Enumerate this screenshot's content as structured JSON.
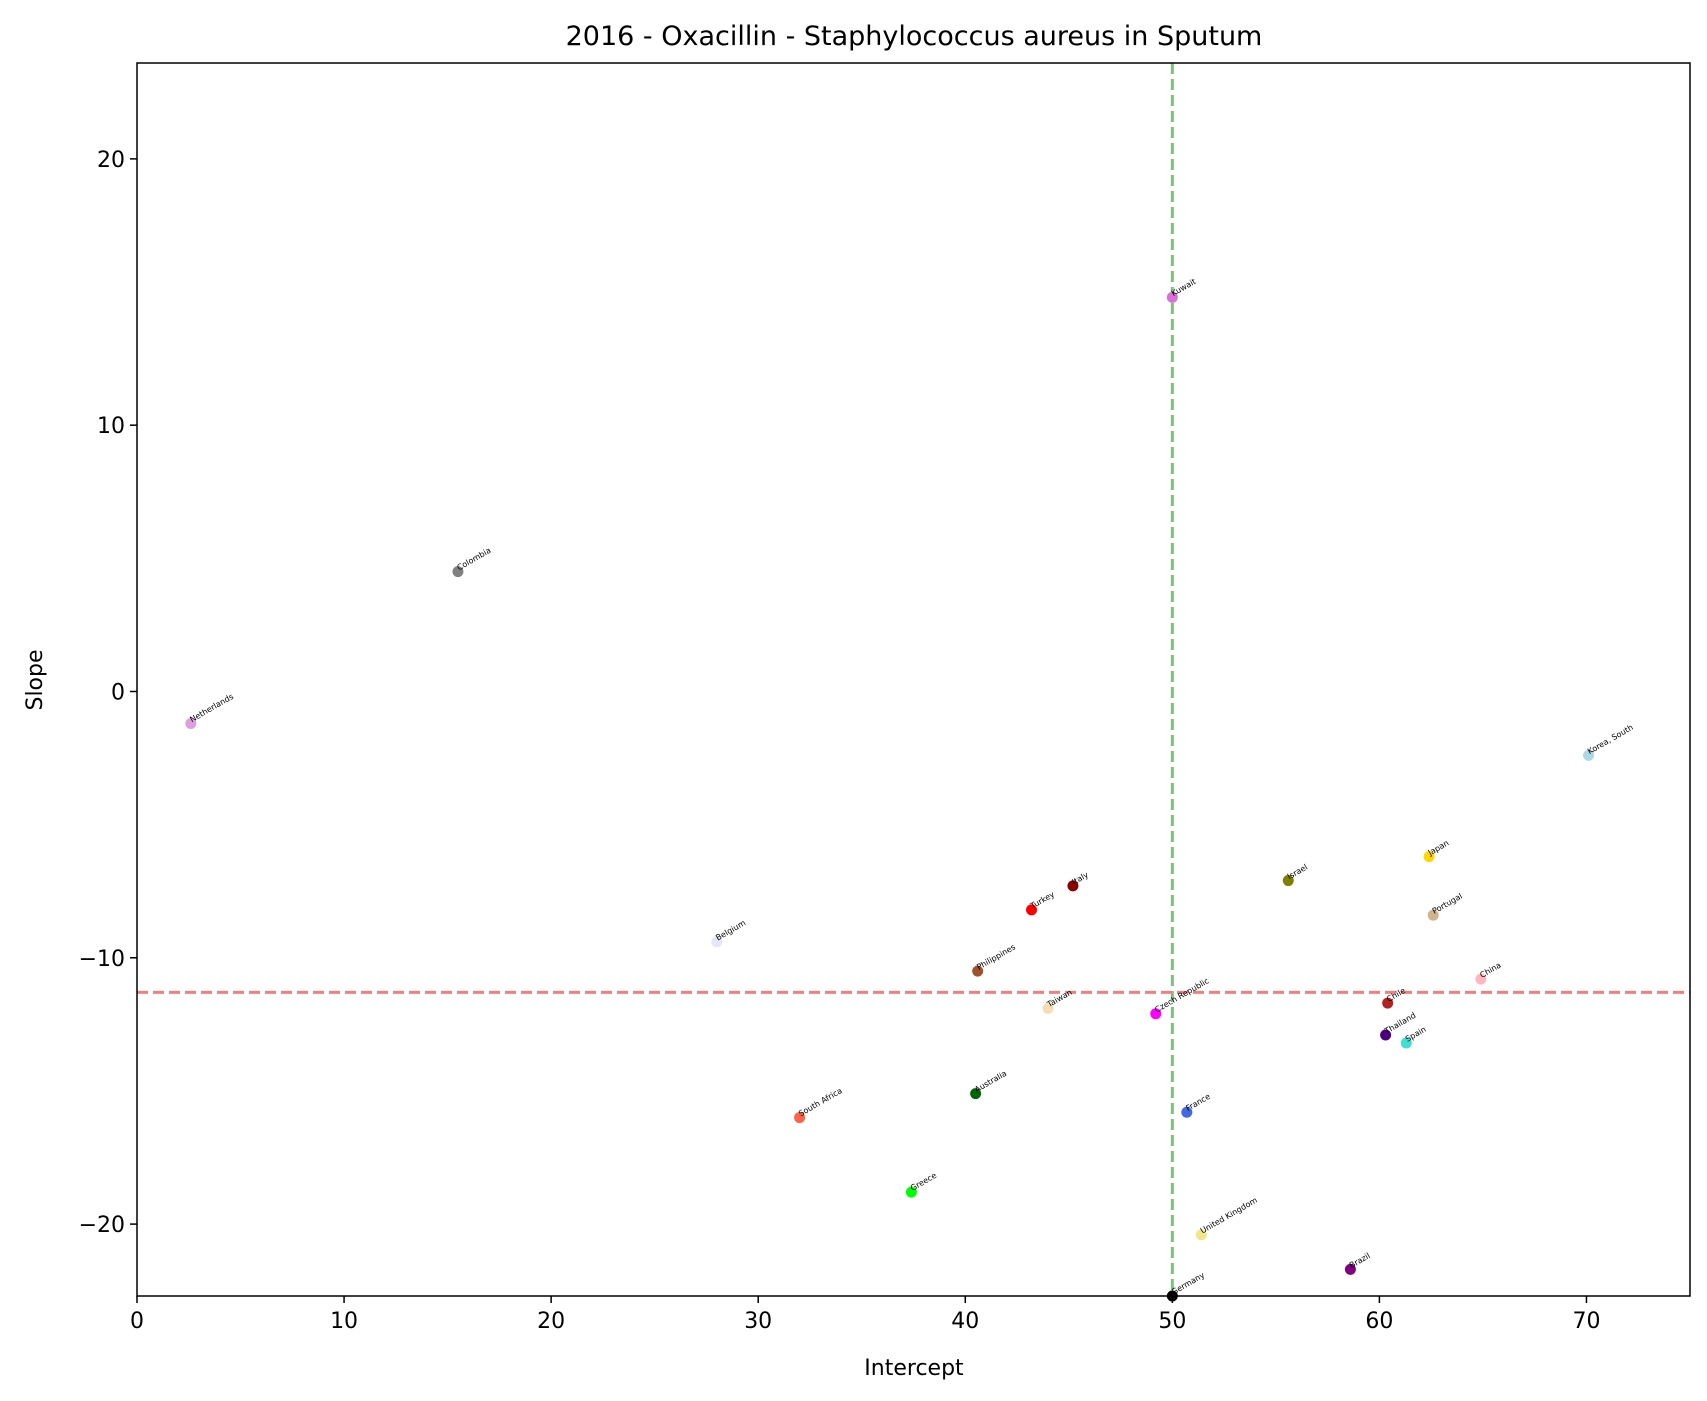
{
  "chart_data": {
    "type": "scatter",
    "title": "2016 - Oxacillin - Staphylococcus aureus in Sputum",
    "xlabel": "Intercept",
    "ylabel": "Slope",
    "xlim": [
      0,
      75
    ],
    "ylim": [
      -22.7,
      23.6
    ],
    "xticks": [
      0,
      10,
      20,
      30,
      40,
      50,
      60,
      70
    ],
    "yticks": [
      -20,
      -10,
      0,
      10,
      20
    ],
    "ytick_labels": [
      "−20",
      "−10",
      "0",
      "10",
      "20"
    ],
    "grid": false,
    "reference_lines": [
      {
        "orientation": "vertical",
        "value": 50,
        "color": "#7fbf7f",
        "style": "dashed"
      },
      {
        "orientation": "horizontal",
        "value": -11.3,
        "color": "#f08080",
        "style": "dashed"
      }
    ],
    "points": [
      {
        "label": "Kuwait",
        "x": 50.0,
        "y": 14.8,
        "color": "#da70d6"
      },
      {
        "label": "Colombia",
        "x": 15.5,
        "y": 4.5,
        "color": "#808080"
      },
      {
        "label": "Netherlands",
        "x": 2.6,
        "y": -1.2,
        "color": "#dda0dd"
      },
      {
        "label": "Korea, South",
        "x": 70.1,
        "y": -2.4,
        "color": "#add8e6"
      },
      {
        "label": "Japan",
        "x": 62.4,
        "y": -6.2,
        "color": "#ffd700"
      },
      {
        "label": "Israel",
        "x": 55.6,
        "y": -7.1,
        "color": "#808000"
      },
      {
        "label": "Italy",
        "x": 45.2,
        "y": -7.3,
        "color": "#8b0000"
      },
      {
        "label": "Turkey",
        "x": 43.2,
        "y": -8.2,
        "color": "#ff0000"
      },
      {
        "label": "Portugal",
        "x": 62.6,
        "y": -8.4,
        "color": "#d2b48c"
      },
      {
        "label": "Belgium",
        "x": 28.0,
        "y": -9.4,
        "color": "#e6e6fa"
      },
      {
        "label": "Philippines",
        "x": 40.6,
        "y": -10.5,
        "color": "#a0522d"
      },
      {
        "label": "China",
        "x": 64.9,
        "y": -10.8,
        "color": "#ffb6c1"
      },
      {
        "label": "Chile",
        "x": 60.4,
        "y": -11.7,
        "color": "#b22222"
      },
      {
        "label": "Taiwan",
        "x": 44.0,
        "y": -11.9,
        "color": "#f5deb3"
      },
      {
        "label": "Czech Republic",
        "x": 49.2,
        "y": -12.1,
        "color": "#ff00ff"
      },
      {
        "label": "Thailand",
        "x": 60.3,
        "y": -12.9,
        "color": "#4b0082"
      },
      {
        "label": "Spain",
        "x": 61.3,
        "y": -13.2,
        "color": "#40e0d0"
      },
      {
        "label": "Australia",
        "x": 40.5,
        "y": -15.1,
        "color": "#006400"
      },
      {
        "label": "South Africa",
        "x": 32.0,
        "y": -16.0,
        "color": "#ff6347"
      },
      {
        "label": "France",
        "x": 50.7,
        "y": -15.8,
        "color": "#4169e1"
      },
      {
        "label": "Greece",
        "x": 37.4,
        "y": -18.8,
        "color": "#00ff00"
      },
      {
        "label": "United Kingdom",
        "x": 51.4,
        "y": -20.4,
        "color": "#f0e68c"
      },
      {
        "label": "Brazil",
        "x": 58.6,
        "y": -21.7,
        "color": "#800080"
      },
      {
        "label": "Germany",
        "x": 50.0,
        "y": -22.7,
        "color": "#000000"
      }
    ]
  }
}
